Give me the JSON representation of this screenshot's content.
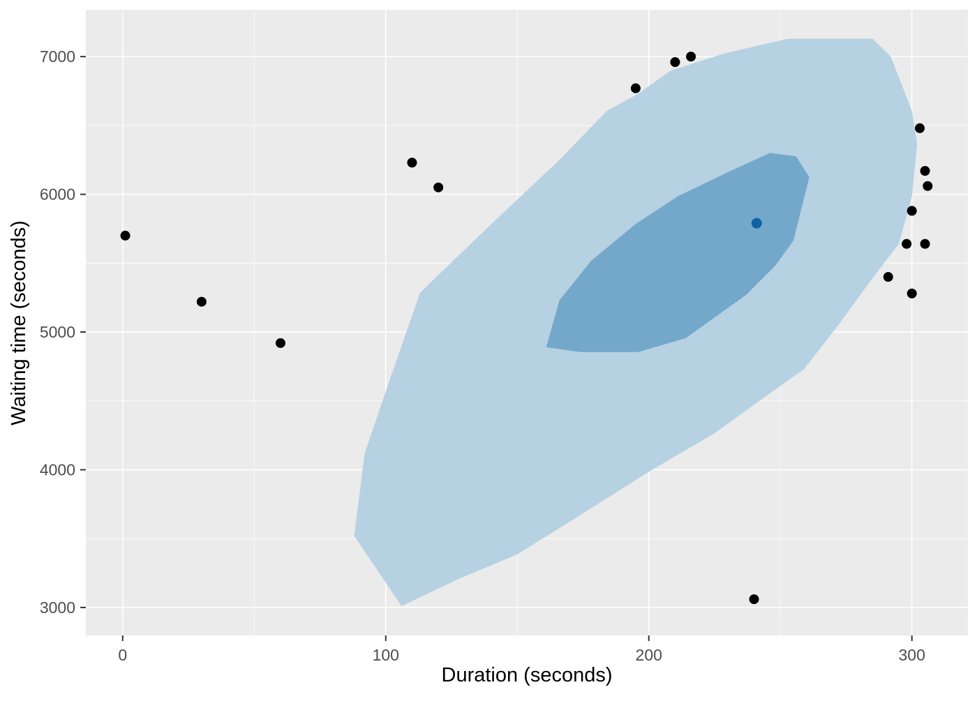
{
  "chart_data": {
    "type": "scatter",
    "title": "",
    "xlabel": "Duration (seconds)",
    "ylabel": "Waiting time (seconds)",
    "x_domain": [
      -14,
      321.3
    ],
    "y_domain": [
      2797,
      7340
    ],
    "x_ticks": [
      0,
      100,
      200,
      300
    ],
    "y_ticks": [
      3000,
      4000,
      5000,
      6000,
      7000
    ],
    "x_minor_gridlines": [
      50,
      150,
      250
    ],
    "y_minor_gridlines": [
      3500,
      4500,
      5500,
      6500
    ],
    "grid": "on",
    "legend": "none",
    "points": [
      [
        1,
        5700
      ],
      [
        30,
        5220
      ],
      [
        60,
        4920
      ],
      [
        110,
        6230
      ],
      [
        120,
        6050
      ],
      [
        195,
        6770
      ],
      [
        210,
        6960
      ],
      [
        216,
        7000
      ],
      [
        240,
        3060
      ],
      [
        291,
        5400
      ],
      [
        298,
        5640
      ],
      [
        300,
        5880
      ],
      [
        300,
        5280
      ],
      [
        303,
        6480
      ],
      [
        305,
        6170
      ],
      [
        305,
        5640
      ],
      [
        306,
        6060
      ]
    ],
    "highlight_point": [
      241,
      5790
    ],
    "density_contours": {
      "outer": [
        [
          253,
          7130
        ],
        [
          285,
          7130
        ],
        [
          292,
          7000
        ],
        [
          300,
          6605
        ],
        [
          302,
          6365
        ],
        [
          300,
          5980
        ],
        [
          295,
          5640
        ],
        [
          285,
          5390
        ],
        [
          272,
          5050
        ],
        [
          259,
          4730
        ],
        [
          242,
          4500
        ],
        [
          225,
          4265
        ],
        [
          200,
          3985
        ],
        [
          181,
          3755
        ],
        [
          150,
          3385
        ],
        [
          128,
          3210
        ],
        [
          106,
          3010
        ],
        [
          88,
          3520
        ],
        [
          92,
          4120
        ],
        [
          102,
          4680
        ],
        [
          113,
          5285
        ],
        [
          138,
          5745
        ],
        [
          166,
          6250
        ],
        [
          184,
          6605
        ],
        [
          196,
          6730
        ],
        [
          208,
          6895
        ],
        [
          229,
          7025
        ]
      ],
      "inner": [
        [
          161,
          4890
        ],
        [
          166,
          5230
        ],
        [
          178,
          5515
        ],
        [
          195,
          5785
        ],
        [
          211,
          5985
        ],
        [
          230,
          6160
        ],
        [
          246,
          6300
        ],
        [
          256,
          6275
        ],
        [
          261,
          6125
        ],
        [
          255,
          5665
        ],
        [
          248,
          5480
        ],
        [
          237,
          5270
        ],
        [
          214,
          4955
        ],
        [
          196,
          4855
        ],
        [
          174,
          4855
        ]
      ]
    },
    "colors": {
      "panel_background": "#EBEBEB",
      "gridline": "#FFFFFF",
      "outer_contour_fill": "#B6D1E2",
      "inner_contour_fill": "#74A8CB",
      "point_fill": "#000000",
      "highlight_point_fill": "#0F63A3",
      "tick_label": "#4D4D4D",
      "axis_title": "#000000",
      "tick_mark": "#333333"
    },
    "point_radius": 7,
    "highlight_point_radius": 7.5
  }
}
